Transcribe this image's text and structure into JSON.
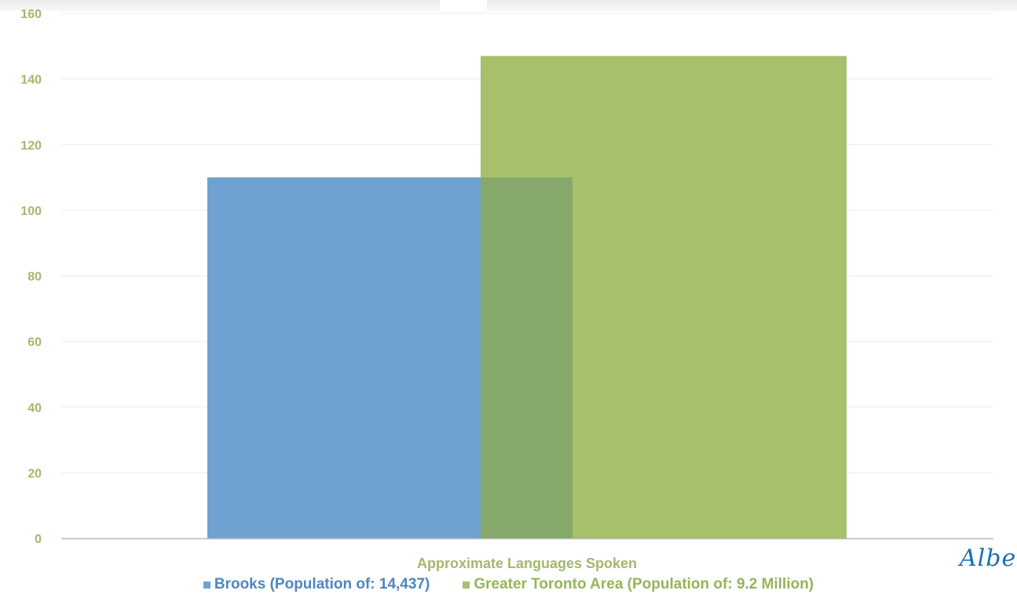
{
  "chart_data": {
    "type": "bar",
    "categories": [
      "Approximate Languages Spoken"
    ],
    "series": [
      {
        "name": "Brooks (Population of: 14,437)",
        "values": [
          110
        ],
        "color": "#6fa2ce"
      },
      {
        "name": "Greater Toronto Area (Population of: 9.2 Million)",
        "values": [
          147
        ],
        "color": "#a6c06c"
      }
    ],
    "overlap_color": "#86a86a",
    "ylim": [
      0,
      160
    ],
    "yticks": [
      "0",
      "20",
      "40",
      "60",
      "80",
      "100",
      "120",
      "140",
      "160"
    ],
    "title": "",
    "xlabel": "",
    "ylabel": "",
    "grid": true,
    "legend_position": "bottom"
  },
  "watermark": {
    "text": "Alber"
  }
}
